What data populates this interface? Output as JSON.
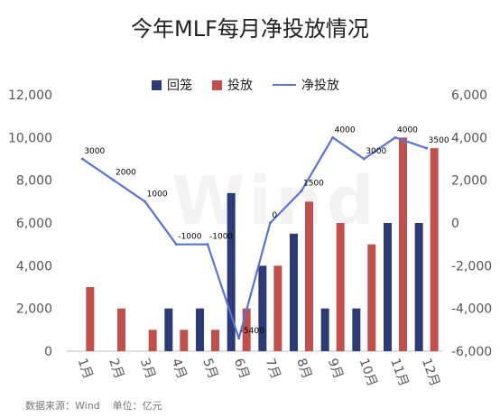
{
  "title": "今年MLF每月净投放情况",
  "source_note": "数据来源：Wind    单位：亿元",
  "watermark": "Wind",
  "legend": {
    "recall": "回笼",
    "inject": "投放",
    "net": "净投放"
  },
  "colors": {
    "recall": "#2e3a73",
    "inject": "#c0504d",
    "net": "#5b72d6",
    "axis": "#bfbfbf",
    "text": "#555555"
  },
  "chart_data": {
    "type": "bar",
    "categories": [
      "1月",
      "2月",
      "3月",
      "4月",
      "5月",
      "6月",
      "7月",
      "8月",
      "9月",
      "10月",
      "11月",
      "12月"
    ],
    "series": [
      {
        "name": "回笼",
        "type": "bar",
        "axis": "left",
        "values": [
          0,
          0,
          0,
          2000,
          2000,
          7400,
          4000,
          5500,
          2000,
          2000,
          6000,
          6000
        ]
      },
      {
        "name": "投放",
        "type": "bar",
        "axis": "left",
        "values": [
          3000,
          2000,
          1000,
          1000,
          1000,
          2000,
          4000,
          7000,
          6000,
          5000,
          10000,
          9500
        ]
      },
      {
        "name": "净投放",
        "type": "line",
        "axis": "right",
        "values": [
          3000,
          2000,
          1000,
          -1000,
          -1000,
          -5400,
          0,
          1500,
          4000,
          3000,
          4000,
          3500
        ]
      }
    ],
    "net_labels": [
      "3000",
      "2000",
      "1000",
      "-1000",
      "-1000",
      "-5400",
      "0",
      "1500",
      "4000",
      "3000",
      "4000",
      "3500"
    ],
    "y_left": {
      "ylim": [
        0,
        12000
      ],
      "ticks": [
        "0",
        "2,000",
        "4,000",
        "6,000",
        "8,000",
        "10,000",
        "12,000"
      ]
    },
    "y_right": {
      "ylim": [
        -6000,
        6000
      ],
      "ticks": [
        "-6,000",
        "-4,000",
        "-2,000",
        "0",
        "2,000",
        "4,000",
        "6,000"
      ]
    },
    "grid": false,
    "legend_position": "top"
  }
}
